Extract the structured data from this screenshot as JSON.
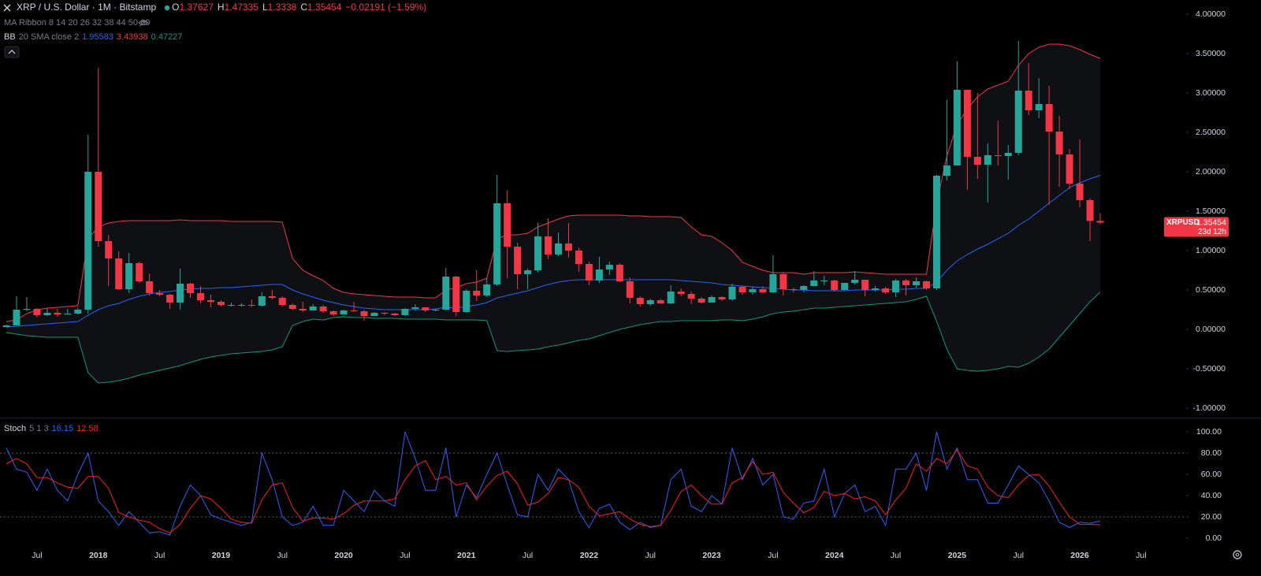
{
  "chart_data": [
    {
      "type": "candlestick",
      "title": "XRP / U.S. Dollar · 1M · Bitstamp",
      "ohlc_labels": [
        "O",
        "H",
        "L",
        "C"
      ],
      "change_label": "−0.02191 (−1.59%)",
      "ma_ribbon": "MA Ribbon 8 14 20 26 32 38 44 50 60",
      "symbol": "XRPUSD",
      "countdown": "23d 12h",
      "up_color": "#26a69a",
      "down_color": "#f23645",
      "ohlc": {
        "open": [
          0.03,
          0.05,
          0.25,
          0.26,
          0.18,
          0.21,
          0.19,
          0.2,
          0.25,
          2.0,
          1.12,
          0.9,
          0.51,
          0.84,
          0.61,
          0.46,
          0.44,
          0.34,
          0.58,
          0.46,
          0.37,
          0.35,
          0.31,
          0.31,
          0.31,
          0.3,
          0.42,
          0.4,
          0.31,
          0.26,
          0.24,
          0.29,
          0.23,
          0.19,
          0.24,
          0.23,
          0.17,
          0.21,
          0.2,
          0.18,
          0.26,
          0.28,
          0.24,
          0.25,
          0.67,
          0.22,
          0.49,
          0.43,
          0.57,
          1.6,
          1.05,
          0.7,
          0.75,
          1.18,
          0.95,
          1.09,
          1.0,
          0.83,
          0.62,
          0.76,
          0.82,
          0.61,
          0.4,
          0.32,
          0.37,
          0.33,
          0.48,
          0.45,
          0.39,
          0.34,
          0.41,
          0.38,
          0.54,
          0.47,
          0.51,
          0.47,
          0.7,
          0.51,
          0.5,
          0.55,
          0.62,
          0.62,
          0.5,
          0.59,
          0.63,
          0.5,
          0.52,
          0.47,
          0.62,
          0.56,
          0.61,
          0.52,
          1.95,
          2.08,
          3.04,
          2.19,
          2.09,
          2.21,
          2.2,
          2.24,
          3.03,
          2.78,
          2.86,
          2.51,
          2.22,
          1.85,
          1.64,
          1.37627
        ],
        "high": [
          0.06,
          0.42,
          0.41,
          0.27,
          0.27,
          0.26,
          0.26,
          0.27,
          2.47,
          3.32,
          1.2,
          0.99,
          0.97,
          0.86,
          0.71,
          0.5,
          0.45,
          0.77,
          0.59,
          0.55,
          0.44,
          0.37,
          0.34,
          0.33,
          0.38,
          0.47,
          0.5,
          0.42,
          0.33,
          0.35,
          0.32,
          0.31,
          0.24,
          0.25,
          0.35,
          0.25,
          0.22,
          0.22,
          0.21,
          0.27,
          0.32,
          0.28,
          0.26,
          0.78,
          0.68,
          0.51,
          0.75,
          0.65,
          1.96,
          1.76,
          1.1,
          0.77,
          1.35,
          1.41,
          1.23,
          1.35,
          1.04,
          0.86,
          0.92,
          0.86,
          0.84,
          0.66,
          0.42,
          0.39,
          0.39,
          0.56,
          0.52,
          0.48,
          0.41,
          0.43,
          0.42,
          0.58,
          0.55,
          0.54,
          0.55,
          0.94,
          0.72,
          0.53,
          0.56,
          0.74,
          0.68,
          0.63,
          0.59,
          0.74,
          0.63,
          0.55,
          0.54,
          0.64,
          0.64,
          0.66,
          0.62,
          1.96,
          2.91,
          3.4,
          3.04,
          3.0,
          2.36,
          2.65,
          2.34,
          3.66,
          3.38,
          3.19,
          3.09,
          2.71,
          2.29,
          2.41,
          1.66,
          1.47335
        ],
        "low": [
          0.03,
          0.05,
          0.23,
          0.15,
          0.17,
          0.16,
          0.19,
          0.19,
          0.2,
          1.05,
          0.55,
          0.5,
          0.46,
          0.59,
          0.43,
          0.42,
          0.26,
          0.25,
          0.4,
          0.33,
          0.28,
          0.29,
          0.29,
          0.29,
          0.28,
          0.29,
          0.38,
          0.29,
          0.24,
          0.22,
          0.24,
          0.21,
          0.17,
          0.19,
          0.23,
          0.11,
          0.17,
          0.18,
          0.17,
          0.17,
          0.24,
          0.22,
          0.23,
          0.24,
          0.17,
          0.21,
          0.36,
          0.41,
          0.55,
          0.65,
          0.51,
          0.51,
          0.72,
          0.89,
          0.93,
          0.91,
          0.73,
          0.56,
          0.59,
          0.69,
          0.6,
          0.33,
          0.29,
          0.3,
          0.32,
          0.32,
          0.42,
          0.32,
          0.33,
          0.34,
          0.36,
          0.36,
          0.44,
          0.44,
          0.46,
          0.46,
          0.43,
          0.47,
          0.47,
          0.55,
          0.56,
          0.48,
          0.49,
          0.57,
          0.42,
          0.48,
          0.45,
          0.41,
          0.43,
          0.53,
          0.5,
          0.5,
          1.89,
          2.08,
          1.77,
          1.91,
          1.61,
          2.08,
          1.9,
          2.21,
          2.72,
          2.68,
          1.58,
          1.81,
          1.78,
          1.55,
          1.12,
          1.3338
        ],
        "close": [
          0.05,
          0.25,
          0.26,
          0.18,
          0.21,
          0.19,
          0.2,
          0.25,
          2.0,
          1.12,
          0.9,
          0.51,
          0.84,
          0.61,
          0.46,
          0.44,
          0.34,
          0.58,
          0.46,
          0.37,
          0.35,
          0.31,
          0.31,
          0.31,
          0.3,
          0.42,
          0.4,
          0.31,
          0.26,
          0.24,
          0.29,
          0.23,
          0.19,
          0.24,
          0.23,
          0.17,
          0.21,
          0.2,
          0.18,
          0.26,
          0.28,
          0.24,
          0.25,
          0.67,
          0.22,
          0.49,
          0.43,
          0.57,
          1.6,
          1.05,
          0.7,
          0.75,
          1.18,
          0.95,
          1.09,
          1.0,
          0.83,
          0.62,
          0.76,
          0.82,
          0.61,
          0.4,
          0.32,
          0.37,
          0.33,
          0.48,
          0.45,
          0.39,
          0.34,
          0.41,
          0.38,
          0.54,
          0.47,
          0.51,
          0.47,
          0.7,
          0.51,
          0.5,
          0.55,
          0.62,
          0.62,
          0.5,
          0.59,
          0.63,
          0.5,
          0.52,
          0.47,
          0.62,
          0.56,
          0.61,
          0.52,
          1.95,
          2.08,
          3.04,
          2.19,
          2.09,
          2.21,
          2.2,
          2.24,
          3.03,
          2.78,
          2.86,
          2.51,
          2.22,
          1.85,
          1.64,
          1.37627,
          1.35454
        ]
      },
      "bb": {
        "name": "BB",
        "params": "20 SMA close 2",
        "basis_color": "#2962ff",
        "upper_color": "#f23645",
        "lower_color": "#089981",
        "basis": [
          0.03,
          0.04,
          0.05,
          0.06,
          0.07,
          0.08,
          0.09,
          0.1,
          0.18,
          0.25,
          0.3,
          0.33,
          0.38,
          0.42,
          0.45,
          0.47,
          0.48,
          0.5,
          0.51,
          0.52,
          0.52,
          0.53,
          0.53,
          0.54,
          0.55,
          0.56,
          0.57,
          0.57,
          0.5,
          0.45,
          0.41,
          0.37,
          0.34,
          0.31,
          0.29,
          0.27,
          0.26,
          0.25,
          0.25,
          0.25,
          0.25,
          0.25,
          0.26,
          0.28,
          0.27,
          0.29,
          0.31,
          0.34,
          0.4,
          0.43,
          0.46,
          0.49,
          0.53,
          0.57,
          0.6,
          0.62,
          0.63,
          0.63,
          0.63,
          0.63,
          0.63,
          0.63,
          0.63,
          0.63,
          0.63,
          0.63,
          0.62,
          0.61,
          0.6,
          0.59,
          0.57,
          0.56,
          0.55,
          0.54,
          0.53,
          0.52,
          0.51,
          0.5,
          0.5,
          0.49,
          0.49,
          0.49,
          0.49,
          0.5,
          0.5,
          0.5,
          0.5,
          0.51,
          0.51,
          0.52,
          0.52,
          0.6,
          0.75,
          0.87,
          0.95,
          1.02,
          1.08,
          1.15,
          1.22,
          1.32,
          1.4,
          1.5,
          1.6,
          1.7,
          1.8,
          1.86,
          1.91,
          1.95583
        ],
        "upper": [
          0.1,
          0.12,
          0.2,
          0.25,
          0.27,
          0.28,
          0.29,
          0.3,
          1.15,
          1.3,
          1.35,
          1.37,
          1.38,
          1.38,
          1.38,
          1.38,
          1.38,
          1.39,
          1.38,
          1.38,
          1.38,
          1.38,
          1.37,
          1.37,
          1.37,
          1.37,
          1.37,
          1.36,
          0.9,
          0.75,
          0.68,
          0.62,
          0.52,
          0.47,
          0.45,
          0.44,
          0.43,
          0.42,
          0.41,
          0.41,
          0.41,
          0.4,
          0.4,
          0.5,
          0.53,
          0.58,
          0.6,
          0.65,
          1.15,
          1.2,
          1.2,
          1.22,
          1.3,
          1.35,
          1.4,
          1.44,
          1.45,
          1.45,
          1.45,
          1.45,
          1.45,
          1.44,
          1.44,
          1.43,
          1.43,
          1.43,
          1.42,
          1.3,
          1.2,
          1.18,
          1.1,
          1.0,
          0.85,
          0.8,
          0.75,
          0.72,
          0.72,
          0.72,
          0.7,
          0.72,
          0.72,
          0.72,
          0.72,
          0.73,
          0.72,
          0.71,
          0.7,
          0.7,
          0.7,
          0.7,
          0.7,
          1.6,
          2.2,
          2.6,
          2.8,
          2.95,
          3.05,
          3.1,
          3.15,
          3.35,
          3.5,
          3.58,
          3.62,
          3.62,
          3.6,
          3.55,
          3.49,
          3.43938
        ],
        "lower": [
          -0.04,
          -0.06,
          -0.08,
          -0.09,
          -0.1,
          -0.1,
          -0.1,
          -0.1,
          -0.55,
          -0.68,
          -0.67,
          -0.65,
          -0.62,
          -0.58,
          -0.55,
          -0.52,
          -0.49,
          -0.46,
          -0.42,
          -0.38,
          -0.35,
          -0.33,
          -0.31,
          -0.3,
          -0.29,
          -0.28,
          -0.26,
          -0.22,
          0.05,
          0.1,
          0.13,
          0.12,
          0.15,
          0.16,
          0.15,
          0.15,
          0.14,
          0.14,
          0.14,
          0.13,
          0.13,
          0.13,
          0.13,
          0.12,
          0.12,
          0.12,
          0.12,
          0.11,
          -0.27,
          -0.28,
          -0.27,
          -0.26,
          -0.25,
          -0.22,
          -0.2,
          -0.17,
          -0.14,
          -0.12,
          -0.08,
          -0.04,
          0.0,
          0.03,
          0.06,
          0.08,
          0.1,
          0.1,
          0.11,
          0.11,
          0.11,
          0.11,
          0.12,
          0.12,
          0.11,
          0.13,
          0.16,
          0.2,
          0.22,
          0.23,
          0.25,
          0.27,
          0.27,
          0.28,
          0.29,
          0.3,
          0.31,
          0.32,
          0.33,
          0.34,
          0.35,
          0.38,
          0.42,
          0.1,
          -0.25,
          -0.5,
          -0.52,
          -0.53,
          -0.52,
          -0.5,
          -0.47,
          -0.48,
          -0.43,
          -0.35,
          -0.25,
          -0.1,
          0.05,
          0.2,
          0.35,
          0.47227
        ]
      },
      "ylim": [
        -1.12,
        4.18
      ],
      "yticks": [
        {
          "value": 4,
          "label": "4.00000"
        },
        {
          "value": 3.5,
          "label": "3.50000"
        },
        {
          "value": 3,
          "label": "3.00000"
        },
        {
          "value": 2.5,
          "label": "2.50000"
        },
        {
          "value": 2,
          "label": "2.00000"
        },
        {
          "value": 1.5,
          "label": "1.50000"
        },
        {
          "value": 1,
          "label": "1.00000"
        },
        {
          "value": 0.5,
          "label": "0.50000"
        },
        {
          "value": 0,
          "label": "0.00000"
        },
        {
          "value": -0.5,
          "label": "-0.50000"
        },
        {
          "value": -1,
          "label": "-1.00000"
        }
      ],
      "xticks": [
        "Jul",
        "2018",
        "Jul",
        "2019",
        "Jul",
        "2020",
        "Jul",
        "2021",
        "Jul",
        "2022",
        "Jul",
        "2023",
        "Jul",
        "2024",
        "Jul",
        "2025",
        "Jul",
        "2026",
        "Jul"
      ]
    },
    {
      "type": "line",
      "title": "Stoch",
      "params": "5 1 3",
      "series": [
        {
          "name": "%K",
          "color": "#2962ff",
          "values": [
            85,
            65,
            62,
            45,
            65,
            45,
            35,
            60,
            80,
            35,
            25,
            12,
            25,
            15,
            5,
            6,
            3,
            30,
            50,
            40,
            22,
            18,
            15,
            12,
            15,
            80,
            55,
            20,
            12,
            15,
            30,
            12,
            12,
            45,
            35,
            25,
            45,
            35,
            30,
            100,
            75,
            45,
            45,
            85,
            20,
            50,
            38,
            60,
            80,
            50,
            22,
            20,
            60,
            45,
            65,
            55,
            25,
            10,
            28,
            32,
            15,
            8,
            15,
            10,
            12,
            55,
            65,
            30,
            25,
            40,
            32,
            85,
            55,
            75,
            50,
            60,
            20,
            18,
            33,
            35,
            65,
            20,
            42,
            50,
            25,
            30,
            12,
            65,
            65,
            80,
            45,
            100,
            65,
            85,
            55,
            55,
            33,
            33,
            50,
            68,
            60,
            52,
            35,
            15,
            10,
            15,
            14,
            16.15
          ]
        },
        {
          "name": "%D",
          "color": "#ff1a1a",
          "values": [
            70,
            75,
            70,
            57,
            57,
            52,
            48,
            47,
            58,
            58,
            47,
            24,
            20,
            17,
            15,
            9,
            5,
            13,
            28,
            40,
            37,
            28,
            18,
            15,
            14,
            36,
            50,
            52,
            29,
            16,
            19,
            19,
            18,
            23,
            31,
            35,
            35,
            35,
            37,
            55,
            68,
            73,
            55,
            58,
            50,
            52,
            36,
            49,
            59,
            63,
            51,
            31,
            34,
            42,
            57,
            55,
            48,
            30,
            21,
            23,
            25,
            18,
            13,
            11,
            12,
            26,
            44,
            50,
            40,
            32,
            32,
            52,
            57,
            72,
            60,
            62,
            43,
            33,
            24,
            29,
            44,
            40,
            42,
            37,
            39,
            35,
            22,
            36,
            47,
            70,
            63,
            75,
            70,
            83,
            68,
            65,
            48,
            40,
            38,
            50,
            59,
            60,
            49,
            34,
            20,
            13,
            13,
            12.58
          ]
        }
      ],
      "levels": [
        80,
        20
      ],
      "ylim": [
        -7.4,
        112.6
      ],
      "yticks": [
        {
          "value": 100,
          "label": "100.00"
        },
        {
          "value": 80,
          "label": "80.00"
        },
        {
          "value": 60,
          "label": "60.00"
        },
        {
          "value": 40,
          "label": "40.00"
        },
        {
          "value": 20,
          "label": "20.00"
        },
        {
          "value": 0,
          "label": "0.00"
        }
      ]
    }
  ]
}
